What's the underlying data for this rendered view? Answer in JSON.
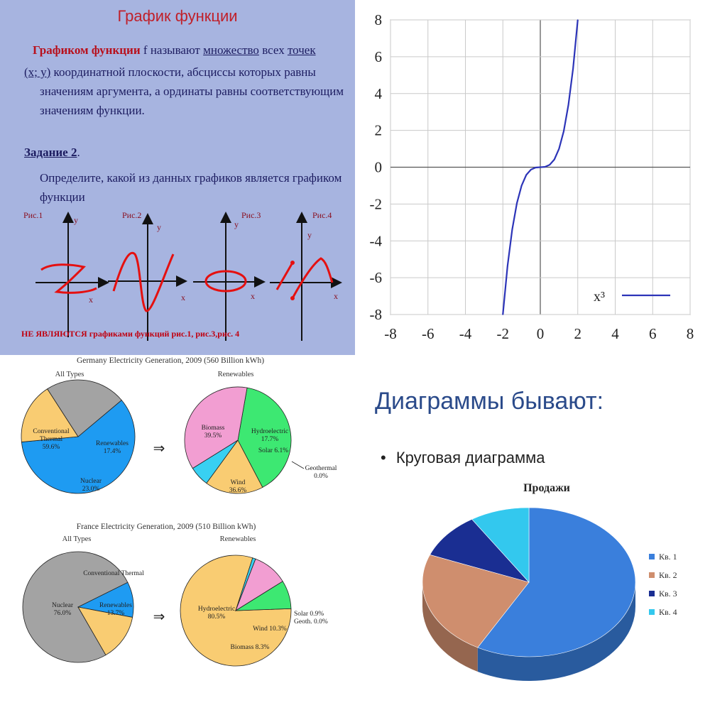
{
  "slide": {
    "title": "График функции",
    "def_bold": "Графиком функции",
    "def_f": " f ",
    "def_part1": "называют ",
    "def_mnozh": "множество",
    "def_vseh": " всех ",
    "def_tochek": "точек",
    "def_xy": "(x; y)",
    "def_line2": " координатной плоскости, абсциссы которых равны",
    "def_line3": "значениям аргумента, а ординаты равны соответствующим",
    "def_line4": "значениям функции.",
    "task_title": "Задание 2",
    "task_dot": ".",
    "task_line1": "Определите, какой из данных графиков является графиком",
    "task_line2": "функции",
    "figs": [
      "Рис.1",
      "Рис.2",
      "Рис.3",
      "Рис.4"
    ],
    "axis_x": "x",
    "axis_y": "y",
    "note": "НЕ ЯВЛЯЮТСЯ графиками функций рис.1, рис.3,рис. 4"
  },
  "chart_data": [
    {
      "type": "line",
      "title": "",
      "xlim": [
        -8,
        8
      ],
      "ylim": [
        -8,
        8
      ],
      "x_ticks": [
        "-8",
        "-6",
        "-4",
        "-2",
        "0",
        "2",
        "4",
        "6",
        "8"
      ],
      "y_ticks": [
        "8",
        "6",
        "4",
        "2",
        "0",
        "-2",
        "-4",
        "-6",
        "-8"
      ],
      "grid": true,
      "legend_position": "bottom-right",
      "series": [
        {
          "name": "x³",
          "color": "#2c34b8",
          "x": [
            -2,
            -1.75,
            -1.5,
            -1.25,
            -1,
            -0.75,
            -0.5,
            -0.25,
            0,
            0.25,
            0.5,
            0.75,
            1,
            1.25,
            1.5,
            1.75,
            2
          ],
          "y": [
            -8,
            -5.36,
            -3.38,
            -1.95,
            -1,
            -0.42,
            -0.13,
            -0.02,
            0,
            0.02,
            0.13,
            0.42,
            1,
            1.95,
            3.38,
            5.36,
            8
          ]
        }
      ]
    },
    {
      "type": "pie",
      "title": "Germany Electricity Generation, 2009 (560 Billion kWh)",
      "subtitle": "All Types",
      "slices": [
        {
          "label": "Conventional Thermal",
          "value": 59.6,
          "value_label": "59.6%",
          "color": "#1e9bf2"
        },
        {
          "label": "Renewables",
          "value": 17.4,
          "value_label": "17.4%",
          "color": "#f9cc72"
        },
        {
          "label": "Nuclear",
          "value": 23.0,
          "value_label": "23.0%",
          "color": "#a3a3a3"
        }
      ]
    },
    {
      "type": "pie",
      "title": "",
      "subtitle": "Renewables",
      "slices": [
        {
          "label": "Biomass",
          "value": 39.5,
          "value_label": "39.5%",
          "color": "#3de872"
        },
        {
          "label": "Hydroelectric",
          "value": 17.7,
          "value_label": "17.7%",
          "color": "#f9cc72"
        },
        {
          "label": "Solar",
          "value": 6.1,
          "value_label": "6.1%",
          "color": "#38d0f2"
        },
        {
          "label": "Geothermal",
          "value": 0.0,
          "value_label": "0.0%",
          "color": "#9a9a9a"
        },
        {
          "label": "Wind",
          "value": 36.6,
          "value_label": "36.6%",
          "color": "#f29ed2"
        }
      ]
    },
    {
      "type": "pie",
      "title": "France Electricity Generation, 2009 (510 Billion kWh)",
      "subtitle": "All Types",
      "slices": [
        {
          "label": "Nuclear",
          "value": 76.0,
          "value_label": "76.0%",
          "color": "#a3a3a3"
        },
        {
          "label": "Conventional Thermal",
          "value": 10.3,
          "value_label": "",
          "color": "#1e9bf2"
        },
        {
          "label": "Renewables",
          "value": 13.7,
          "value_label": "13.7%",
          "color": "#f9cc72"
        }
      ]
    },
    {
      "type": "pie",
      "title": "",
      "subtitle": "Renewables",
      "slices": [
        {
          "label": "Hydroelectric",
          "value": 80.5,
          "value_label": "80.5%",
          "color": "#f9cc72"
        },
        {
          "label": "Solar",
          "value": 0.9,
          "value_label": "0.9%",
          "color": "#38d0f2"
        },
        {
          "label": "Geoth.",
          "value": 0.0,
          "value_label": "0.0%",
          "color": "#9a9a9a"
        },
        {
          "label": "Wind",
          "value": 10.3,
          "value_label": "10.3%",
          "color": "#f29ed2"
        },
        {
          "label": "Biomass",
          "value": 8.3,
          "value_label": "8.3%",
          "color": "#3de872"
        }
      ]
    },
    {
      "type": "pie",
      "title": "Продажи",
      "legend_position": "right",
      "slices": [
        {
          "label": "Кв. 1",
          "value": 58,
          "color": "#3a7fdc"
        },
        {
          "label": "Кв. 2",
          "value": 23,
          "color": "#cf8e6e"
        },
        {
          "label": "Кв. 3",
          "value": 10,
          "color": "#1a2e92"
        },
        {
          "label": "Кв. 4",
          "value": 9,
          "color": "#33c8ee"
        }
      ]
    }
  ],
  "bottom_right": {
    "title": "Диаграммы бывают:",
    "bullet": "•",
    "item": "Круговая диаграмма"
  },
  "arrow": "⇒"
}
